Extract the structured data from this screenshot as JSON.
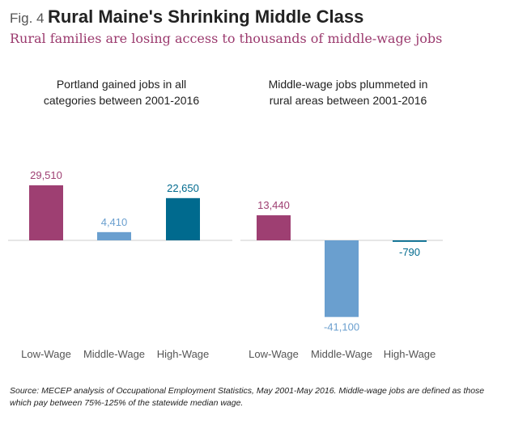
{
  "header": {
    "fig_label": "Fig. 4",
    "title": "Rural Maine's Shrinking Middle Class",
    "subtitle": "Rural families are losing access to thousands of middle-wage jobs"
  },
  "colors": {
    "low_wage": "#9e3f72",
    "middle_wage": "#6a9fcf",
    "high_wage": "#006a8e",
    "subtitle": "#9b3a6e",
    "baseline": "#cccccc"
  },
  "chart_data": [
    {
      "type": "bar",
      "title_lines": [
        "Portland gained jobs in all",
        "categories between 2001-2016"
      ],
      "categories": [
        "Low-Wage",
        "Middle-Wage",
        "High-Wage"
      ],
      "values": [
        29510,
        4410,
        22650
      ],
      "value_labels": [
        "29,510",
        "4,410",
        "22,650"
      ],
      "xlabel": "",
      "ylabel": "",
      "grid": false,
      "legend": "none"
    },
    {
      "type": "bar",
      "title_lines": [
        "Middle-wage jobs plummeted in",
        "rural areas between 2001-2016"
      ],
      "categories": [
        "Low-Wage",
        "Middle-Wage",
        "High-Wage"
      ],
      "values": [
        13440,
        -41100,
        -790
      ],
      "value_labels": [
        "13,440",
        "-41,100",
        "-790"
      ],
      "xlabel": "",
      "ylabel": "",
      "grid": false,
      "legend": "none"
    }
  ],
  "source": "Source: MECEP analysis of Occupational Employment Statistics, May 2001-May 2016. Middle-wage jobs are defined as those which pay between 75%-125% of the statewide median wage."
}
